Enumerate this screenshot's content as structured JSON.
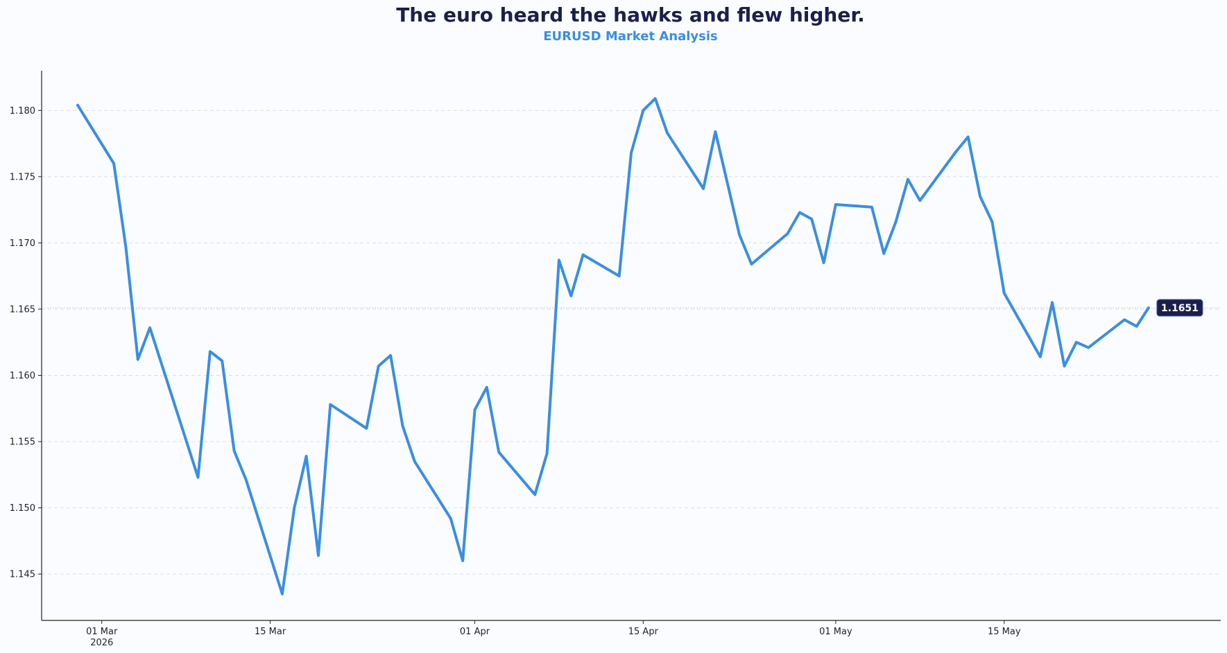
{
  "chart_data": {
    "type": "line",
    "title": "The euro heard the hawks and flew higher.",
    "subtitle": "EURUSD Market Analysis",
    "xlabel": "",
    "ylabel": "",
    "ylim": [
      1.1415,
      1.183
    ],
    "xlim": [
      "2026-02-24",
      "2026-06-02"
    ],
    "grid": {
      "horizontal": true,
      "vertical": false
    },
    "line_color": "#3a8ee0",
    "last_label_bg": "#1b1f4b",
    "y_ticks": [
      {
        "value": 1.145,
        "label": "1.145"
      },
      {
        "value": 1.15,
        "label": "1.150"
      },
      {
        "value": 1.155,
        "label": "1.155"
      },
      {
        "value": 1.16,
        "label": "1.160"
      },
      {
        "value": 1.165,
        "label": "1.165"
      },
      {
        "value": 1.17,
        "label": "1.170"
      },
      {
        "value": 1.175,
        "label": "1.175"
      },
      {
        "value": 1.18,
        "label": "1.180"
      }
    ],
    "x_ticks": [
      {
        "date": "2026-03-01",
        "label": "01 Mar",
        "sublabel": "2026"
      },
      {
        "date": "2026-03-15",
        "label": "15 Mar",
        "sublabel": ""
      },
      {
        "date": "2026-04-01",
        "label": "01 Apr",
        "sublabel": ""
      },
      {
        "date": "2026-04-15",
        "label": "15 Apr",
        "sublabel": ""
      },
      {
        "date": "2026-05-01",
        "label": "01 May",
        "sublabel": ""
      },
      {
        "date": "2026-05-15",
        "label": "15 May",
        "sublabel": ""
      }
    ],
    "series": [
      {
        "points": [
          [
            "2026-02-27",
            1.1804
          ],
          [
            "2026-03-02",
            1.176
          ],
          [
            "2026-03-03",
            1.1697
          ],
          [
            "2026-03-04",
            1.1612
          ],
          [
            "2026-03-05",
            1.1636
          ],
          [
            "2026-03-09",
            1.1523
          ],
          [
            "2026-03-10",
            1.1618
          ],
          [
            "2026-03-11",
            1.1611
          ],
          [
            "2026-03-12",
            1.1543
          ],
          [
            "2026-03-13",
            1.1521
          ],
          [
            "2026-03-16",
            1.1435
          ],
          [
            "2026-03-17",
            1.15
          ],
          [
            "2026-03-18",
            1.1539
          ],
          [
            "2026-03-19",
            1.1464
          ],
          [
            "2026-03-20",
            1.1578
          ],
          [
            "2026-03-23",
            1.156
          ],
          [
            "2026-03-24",
            1.1607
          ],
          [
            "2026-03-25",
            1.1615
          ],
          [
            "2026-03-26",
            1.1562
          ],
          [
            "2026-03-27",
            1.1535
          ],
          [
            "2026-03-30",
            1.1492
          ],
          [
            "2026-03-31",
            1.146
          ],
          [
            "2026-04-01",
            1.1574
          ],
          [
            "2026-04-02",
            1.1591
          ],
          [
            "2026-04-03",
            1.1542
          ],
          [
            "2026-04-06",
            1.151
          ],
          [
            "2026-04-07",
            1.1541
          ],
          [
            "2026-04-08",
            1.1687
          ],
          [
            "2026-04-09",
            1.166
          ],
          [
            "2026-04-10",
            1.1691
          ],
          [
            "2026-04-13",
            1.1675
          ],
          [
            "2026-04-14",
            1.1768
          ],
          [
            "2026-04-15",
            1.18
          ],
          [
            "2026-04-16",
            1.1809
          ],
          [
            "2026-04-17",
            1.1783
          ],
          [
            "2026-04-20",
            1.1741
          ],
          [
            "2026-04-21",
            1.1784
          ],
          [
            "2026-04-22",
            1.1745
          ],
          [
            "2026-04-23",
            1.1706
          ],
          [
            "2026-04-24",
            1.1684
          ],
          [
            "2026-04-27",
            1.1707
          ],
          [
            "2026-04-28",
            1.1723
          ],
          [
            "2026-04-29",
            1.1718
          ],
          [
            "2026-04-30",
            1.1685
          ],
          [
            "2026-05-01",
            1.1729
          ],
          [
            "2026-05-04",
            1.1727
          ],
          [
            "2026-05-05",
            1.1692
          ],
          [
            "2026-05-06",
            1.1716
          ],
          [
            "2026-05-07",
            1.1748
          ],
          [
            "2026-05-08",
            1.1732
          ],
          [
            "2026-05-11",
            1.1769
          ],
          [
            "2026-05-12",
            1.178
          ],
          [
            "2026-05-13",
            1.1735
          ],
          [
            "2026-05-14",
            1.1716
          ],
          [
            "2026-05-15",
            1.1662
          ],
          [
            "2026-05-18",
            1.1614
          ],
          [
            "2026-05-19",
            1.1655
          ],
          [
            "2026-05-20",
            1.1607
          ],
          [
            "2026-05-21",
            1.1625
          ],
          [
            "2026-05-22",
            1.1621
          ],
          [
            "2026-05-25",
            1.1642
          ],
          [
            "2026-05-26",
            1.1637
          ],
          [
            "2026-05-27",
            1.1651
          ]
        ]
      }
    ],
    "last_value_label": "1.1651"
  }
}
